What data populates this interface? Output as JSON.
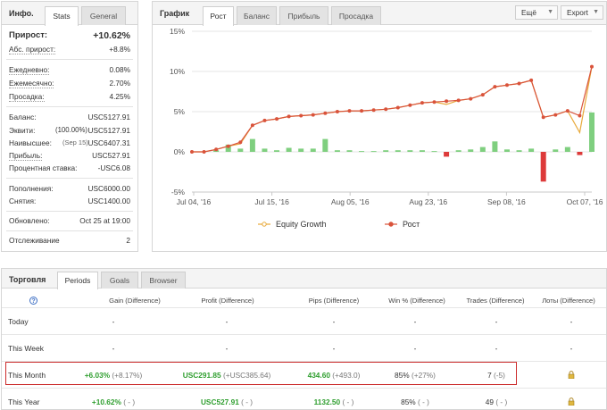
{
  "info": {
    "title": "Инфо.",
    "tabs": [
      "Stats",
      "General"
    ],
    "growth": {
      "label": "Прирост:",
      "value": "+10.62%"
    },
    "abs_growth": {
      "label": "Абс. прирост:",
      "value": "+8.8%"
    },
    "daily": {
      "label": "Ежедневно:",
      "value": "0.08%"
    },
    "monthly": {
      "label": "Ежемесячно:",
      "value": "2.70%"
    },
    "drawdown": {
      "label": "Просадка:",
      "value": "4.25%"
    },
    "balance": {
      "label": "Баланс:",
      "value": "USC5127.91"
    },
    "equity": {
      "label": "Эквити:",
      "note": "(100.00%)",
      "value": "USC5127.91"
    },
    "highest": {
      "label": "Наивысшее:",
      "note": "(Sep 15)",
      "value": "USC6407.31"
    },
    "profit": {
      "label": "Прибыль:",
      "value": "USC527.91"
    },
    "interest": {
      "label": "Процентная ставка:",
      "value": "-USC6.08"
    },
    "deposits": {
      "label": "Пополнения:",
      "value": "USC6000.00"
    },
    "withdrawals": {
      "label": "Снятия:",
      "value": "USC1400.00"
    },
    "updated": {
      "label": "Обновлено:",
      "value": "Oct 25 at 19:00"
    },
    "tracking": {
      "label": "Отслеживание",
      "value": "2"
    }
  },
  "chart_panel": {
    "title": "График",
    "tabs": [
      "Рост",
      "Баланс",
      "Прибыль",
      "Просадка"
    ],
    "more_label": "Ещё",
    "export_label": "Export"
  },
  "chart_data": {
    "type": "line",
    "x_ticks": [
      "Jul 04, '16",
      "Jul 15, '16",
      "Aug 05, '16",
      "Aug 23, '16",
      "Sep 08, '16",
      "Oct 07, '16"
    ],
    "y_ticks": [
      "15%",
      "10%",
      "5%",
      "0%",
      "-5%"
    ],
    "ylim": [
      -5,
      15
    ],
    "grid": true,
    "legend_position": "bottom",
    "series": [
      {
        "name": "Equity Growth",
        "color": "#e8a93a",
        "values": [
          0,
          0,
          0.3,
          0.7,
          1.0,
          3.3,
          3.9,
          4.1,
          4.4,
          4.5,
          4.6,
          4.8,
          5.0,
          5.1,
          5.1,
          5.2,
          5.3,
          5.5,
          5.8,
          6.1,
          6.2,
          5.9,
          6.4,
          6.6,
          7.1,
          8.1,
          8.3,
          8.5,
          8.9,
          4.3,
          4.6,
          5.1,
          2.4,
          10.6
        ]
      },
      {
        "name": "Рост",
        "color": "#d9533b",
        "values": [
          0,
          0,
          0.3,
          0.7,
          1.2,
          3.3,
          3.9,
          4.1,
          4.4,
          4.5,
          4.6,
          4.8,
          5.0,
          5.1,
          5.1,
          5.2,
          5.3,
          5.5,
          5.8,
          6.1,
          6.2,
          6.3,
          6.4,
          6.6,
          7.1,
          8.1,
          8.3,
          8.5,
          8.9,
          4.3,
          4.6,
          5.1,
          4.5,
          10.6
        ]
      }
    ],
    "bars": [
      0,
      0,
      0.2,
      0.9,
      0.4,
      1.6,
      0.4,
      0.2,
      0.5,
      0.4,
      0.4,
      1.6,
      0.2,
      0.2,
      0.1,
      0.1,
      0.2,
      0.2,
      0.2,
      0.2,
      0.1,
      -0.6,
      0.2,
      0.3,
      0.6,
      1.3,
      0.3,
      0.2,
      0.4,
      -3.7,
      0.3,
      0.6,
      -0.4,
      4.9
    ],
    "bar_colors": {
      "positive": "#7fcf7f",
      "negative": "#dd3a3a"
    }
  },
  "trading": {
    "title": "Торговля",
    "tabs": [
      "Periods",
      "Goals",
      "Browser"
    ],
    "help_icon": "help-circle-icon",
    "columns": [
      "Gain (Difference)",
      "Profit (Difference)",
      "Pips (Difference)",
      "Win % (Difference)",
      "Trades (Difference)",
      "Лоты (Difference)"
    ],
    "rows": [
      {
        "label": "Today",
        "gain": "-",
        "gain_diff": "",
        "profit": "-",
        "profit_diff": "",
        "pips": "-",
        "pips_diff": "",
        "win": "-",
        "win_diff": "",
        "trades": "-",
        "trades_diff": "",
        "lots": "-"
      },
      {
        "label": "This Week",
        "gain": "-",
        "gain_diff": "",
        "profit": "-",
        "profit_diff": "",
        "pips": "-",
        "pips_diff": "",
        "win": "-",
        "win_diff": "",
        "trades": "-",
        "trades_diff": "",
        "lots": "-"
      },
      {
        "label": "This Month",
        "gain": "+6.03%",
        "gain_diff": "(+8.17%)",
        "profit": "USC291.85",
        "profit_diff": "(+USC385.64)",
        "pips": "434.60",
        "pips_diff": "(+493.0)",
        "win": "85%",
        "win_diff": "(+27%)",
        "trades": "7",
        "trades_diff": "(-5)",
        "lots": "lock-icon"
      },
      {
        "label": "This Year",
        "gain": "+10.62%",
        "gain_diff": "( - )",
        "profit": "USC527.91",
        "profit_diff": "( - )",
        "pips": "1132.50",
        "pips_diff": "( - )",
        "win": "85%",
        "win_diff": "( - )",
        "trades": "49",
        "trades_diff": "( - )",
        "lots": "lock-icon"
      }
    ]
  }
}
